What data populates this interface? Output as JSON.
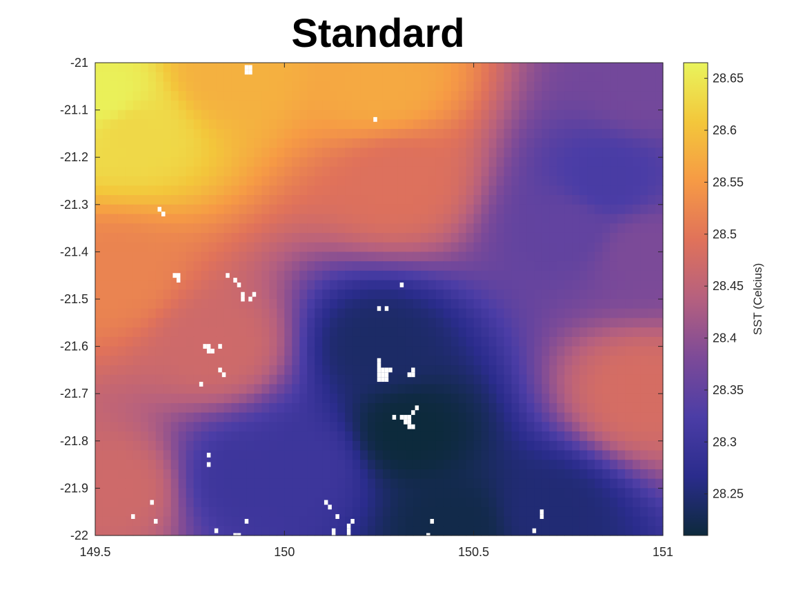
{
  "chart_data": {
    "type": "heatmap",
    "title": "Standard",
    "xlabel": "",
    "ylabel": "",
    "xlim": [
      149.5,
      151
    ],
    "ylim": [
      -22,
      -21
    ],
    "x_ticks": [
      149.5,
      150,
      150.5,
      151
    ],
    "x_tick_labels": [
      "149.5",
      "150",
      "150.5",
      "151"
    ],
    "y_ticks": [
      -21,
      -21.1,
      -21.2,
      -21.3,
      -21.4,
      -21.5,
      -21.6,
      -21.7,
      -21.8,
      -21.9,
      -22
    ],
    "y_tick_labels": [
      "-21",
      "-21.1",
      "-21.2",
      "-21.3",
      "-21.4",
      "-21.5",
      "-21.6",
      "-21.7",
      "-21.8",
      "-21.9",
      "-22"
    ],
    "colorbar": {
      "label": "SST (Celcius)",
      "range": [
        28.21,
        28.665
      ],
      "ticks": [
        28.25,
        28.3,
        28.35,
        28.4,
        28.45,
        28.5,
        28.55,
        28.6,
        28.65
      ],
      "tick_labels": [
        "28.25",
        "28.3",
        "28.35",
        "28.4",
        "28.45",
        "28.5",
        "28.55",
        "28.6",
        "28.65"
      ],
      "colormap": [
        "#0d2a3c",
        "#2a2c8c",
        "#4b3da6",
        "#7c4a98",
        "#b5607f",
        "#e0725a",
        "#f69a45",
        "#f3c73b",
        "#e9f45c"
      ]
    },
    "field_features": [
      {
        "lon": 149.52,
        "lat": -21.07,
        "sst": 28.66
      },
      {
        "lon": 149.6,
        "lat": -21.15,
        "sst": 28.63
      },
      {
        "lon": 149.85,
        "lat": -21.02,
        "sst": 28.58
      },
      {
        "lon": 150.25,
        "lat": -21.05,
        "sst": 28.57
      },
      {
        "lon": 149.55,
        "lat": -21.45,
        "sst": 28.52
      },
      {
        "lon": 150.3,
        "lat": -21.25,
        "sst": 28.49
      },
      {
        "lon": 150.95,
        "lat": -21.05,
        "sst": 28.37
      },
      {
        "lon": 150.85,
        "lat": -21.25,
        "sst": 28.32
      },
      {
        "lon": 150.75,
        "lat": -21.35,
        "sst": 28.35
      },
      {
        "lon": 150.95,
        "lat": -21.4,
        "sst": 28.38
      },
      {
        "lon": 150.95,
        "lat": -21.7,
        "sst": 28.48
      },
      {
        "lon": 149.55,
        "lat": -21.9,
        "sst": 28.47
      },
      {
        "lon": 150.25,
        "lat": -21.6,
        "sst": 28.24
      },
      {
        "lon": 150.33,
        "lat": -21.78,
        "sst": 28.21
      },
      {
        "lon": 150.45,
        "lat": -21.98,
        "sst": 28.22
      },
      {
        "lon": 150.05,
        "lat": -21.85,
        "sst": 28.3
      },
      {
        "lon": 149.9,
        "lat": -21.88,
        "sst": 28.3
      },
      {
        "lon": 150.7,
        "lat": -21.95,
        "sst": 28.25
      },
      {
        "lon": 149.82,
        "lat": -21.6,
        "sst": 28.47
      }
    ],
    "missing_cells": [
      [
        149.9,
        -21.01
      ],
      [
        149.91,
        -21.01
      ],
      [
        149.9,
        -21.02
      ],
      [
        149.91,
        -21.02
      ],
      [
        150.24,
        -21.12
      ],
      [
        149.67,
        -21.31
      ],
      [
        149.68,
        -21.32
      ],
      [
        149.71,
        -21.45
      ],
      [
        149.72,
        -21.45
      ],
      [
        149.72,
        -21.46
      ],
      [
        149.85,
        -21.45
      ],
      [
        149.87,
        -21.46
      ],
      [
        149.88,
        -21.47
      ],
      [
        149.89,
        -21.49
      ],
      [
        149.89,
        -21.5
      ],
      [
        149.91,
        -21.5
      ],
      [
        149.92,
        -21.49
      ],
      [
        150.31,
        -21.47
      ],
      [
        150.25,
        -21.52
      ],
      [
        150.27,
        -21.52
      ],
      [
        149.79,
        -21.6
      ],
      [
        149.8,
        -21.6
      ],
      [
        149.8,
        -21.61
      ],
      [
        149.81,
        -21.61
      ],
      [
        149.83,
        -21.6
      ],
      [
        149.83,
        -21.65
      ],
      [
        149.84,
        -21.66
      ],
      [
        149.78,
        -21.68
      ],
      [
        150.25,
        -21.63
      ],
      [
        150.25,
        -21.64
      ],
      [
        150.25,
        -21.65
      ],
      [
        150.26,
        -21.65
      ],
      [
        150.27,
        -21.65
      ],
      [
        150.28,
        -21.65
      ],
      [
        150.25,
        -21.66
      ],
      [
        150.26,
        -21.66
      ],
      [
        150.27,
        -21.66
      ],
      [
        150.25,
        -21.67
      ],
      [
        150.26,
        -21.67
      ],
      [
        150.27,
        -21.67
      ],
      [
        150.34,
        -21.65
      ],
      [
        150.33,
        -21.66
      ],
      [
        150.34,
        -21.66
      ],
      [
        150.29,
        -21.75
      ],
      [
        150.31,
        -21.75
      ],
      [
        150.32,
        -21.75
      ],
      [
        150.33,
        -21.75
      ],
      [
        150.34,
        -21.74
      ],
      [
        150.35,
        -21.73
      ],
      [
        150.32,
        -21.76
      ],
      [
        150.33,
        -21.76
      ],
      [
        150.33,
        -21.77
      ],
      [
        150.34,
        -21.77
      ],
      [
        149.8,
        -21.83
      ],
      [
        149.8,
        -21.85
      ],
      [
        149.65,
        -21.93
      ],
      [
        149.6,
        -21.96
      ],
      [
        149.66,
        -21.97
      ],
      [
        150.11,
        -21.93
      ],
      [
        150.12,
        -21.94
      ],
      [
        150.14,
        -21.96
      ],
      [
        150.18,
        -21.97
      ],
      [
        150.17,
        -21.98
      ],
      [
        150.17,
        -21.99
      ],
      [
        150.13,
        -21.99
      ],
      [
        150.13,
        -22.0
      ],
      [
        150.17,
        -22.0
      ],
      [
        149.82,
        -21.99
      ],
      [
        149.87,
        -22.0
      ],
      [
        149.88,
        -22.0
      ],
      [
        149.9,
        -21.97
      ],
      [
        150.39,
        -21.97
      ],
      [
        150.38,
        -22.0
      ],
      [
        150.68,
        -21.95
      ],
      [
        150.68,
        -21.96
      ],
      [
        150.66,
        -21.99
      ]
    ]
  }
}
